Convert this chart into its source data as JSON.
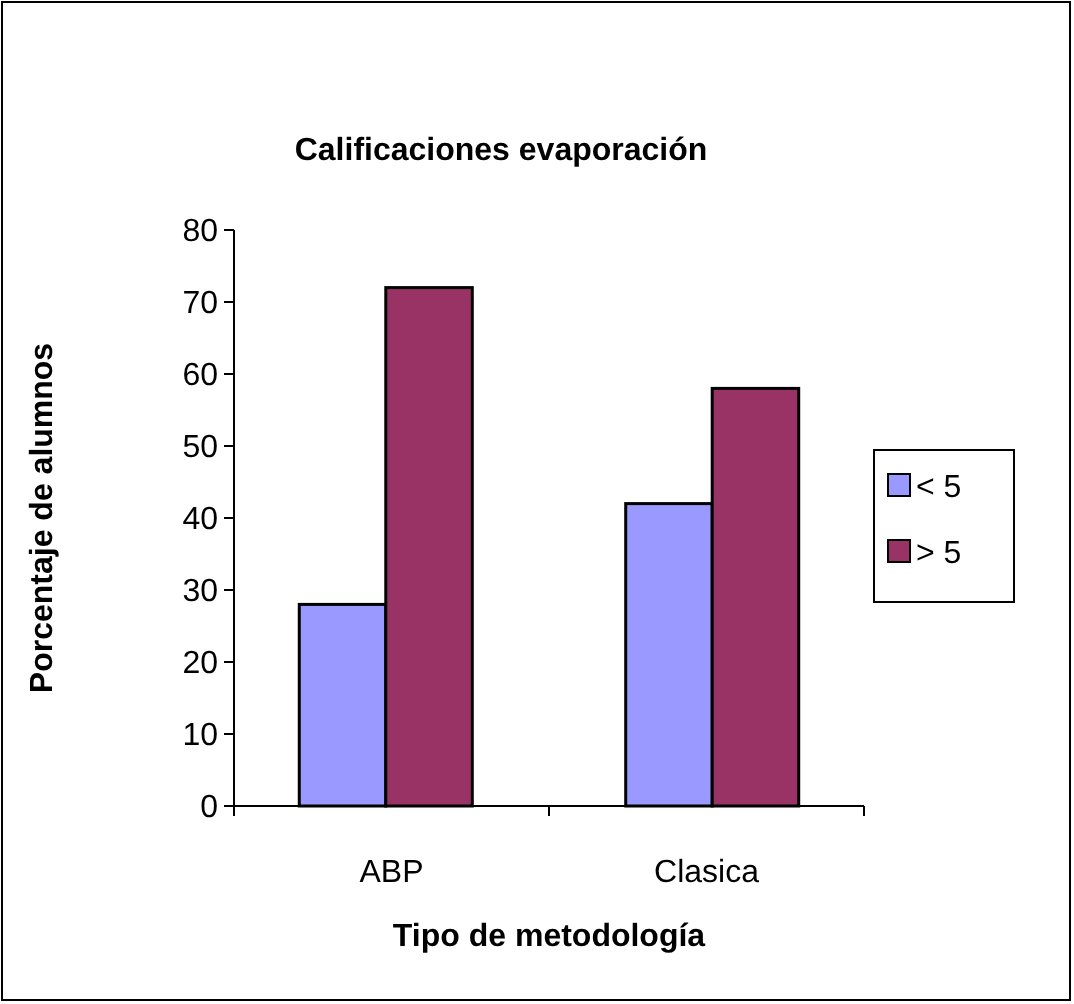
{
  "chart_data": {
    "type": "bar",
    "title": "Calificaciones evaporación",
    "xlabel": "Tipo de metodología",
    "ylabel": "Porcentaje de alumnos",
    "categories": [
      "ABP",
      "Clasica"
    ],
    "series": [
      {
        "name": "< 5",
        "color": "#9999ff",
        "values": [
          28,
          42
        ]
      },
      {
        "name": "> 5",
        "color": "#993366",
        "values": [
          72,
          58
        ]
      }
    ],
    "ylim": [
      0,
      80
    ],
    "yticks": [
      0,
      10,
      20,
      30,
      40,
      50,
      60,
      70,
      80
    ],
    "grid": false,
    "legend": "right"
  }
}
